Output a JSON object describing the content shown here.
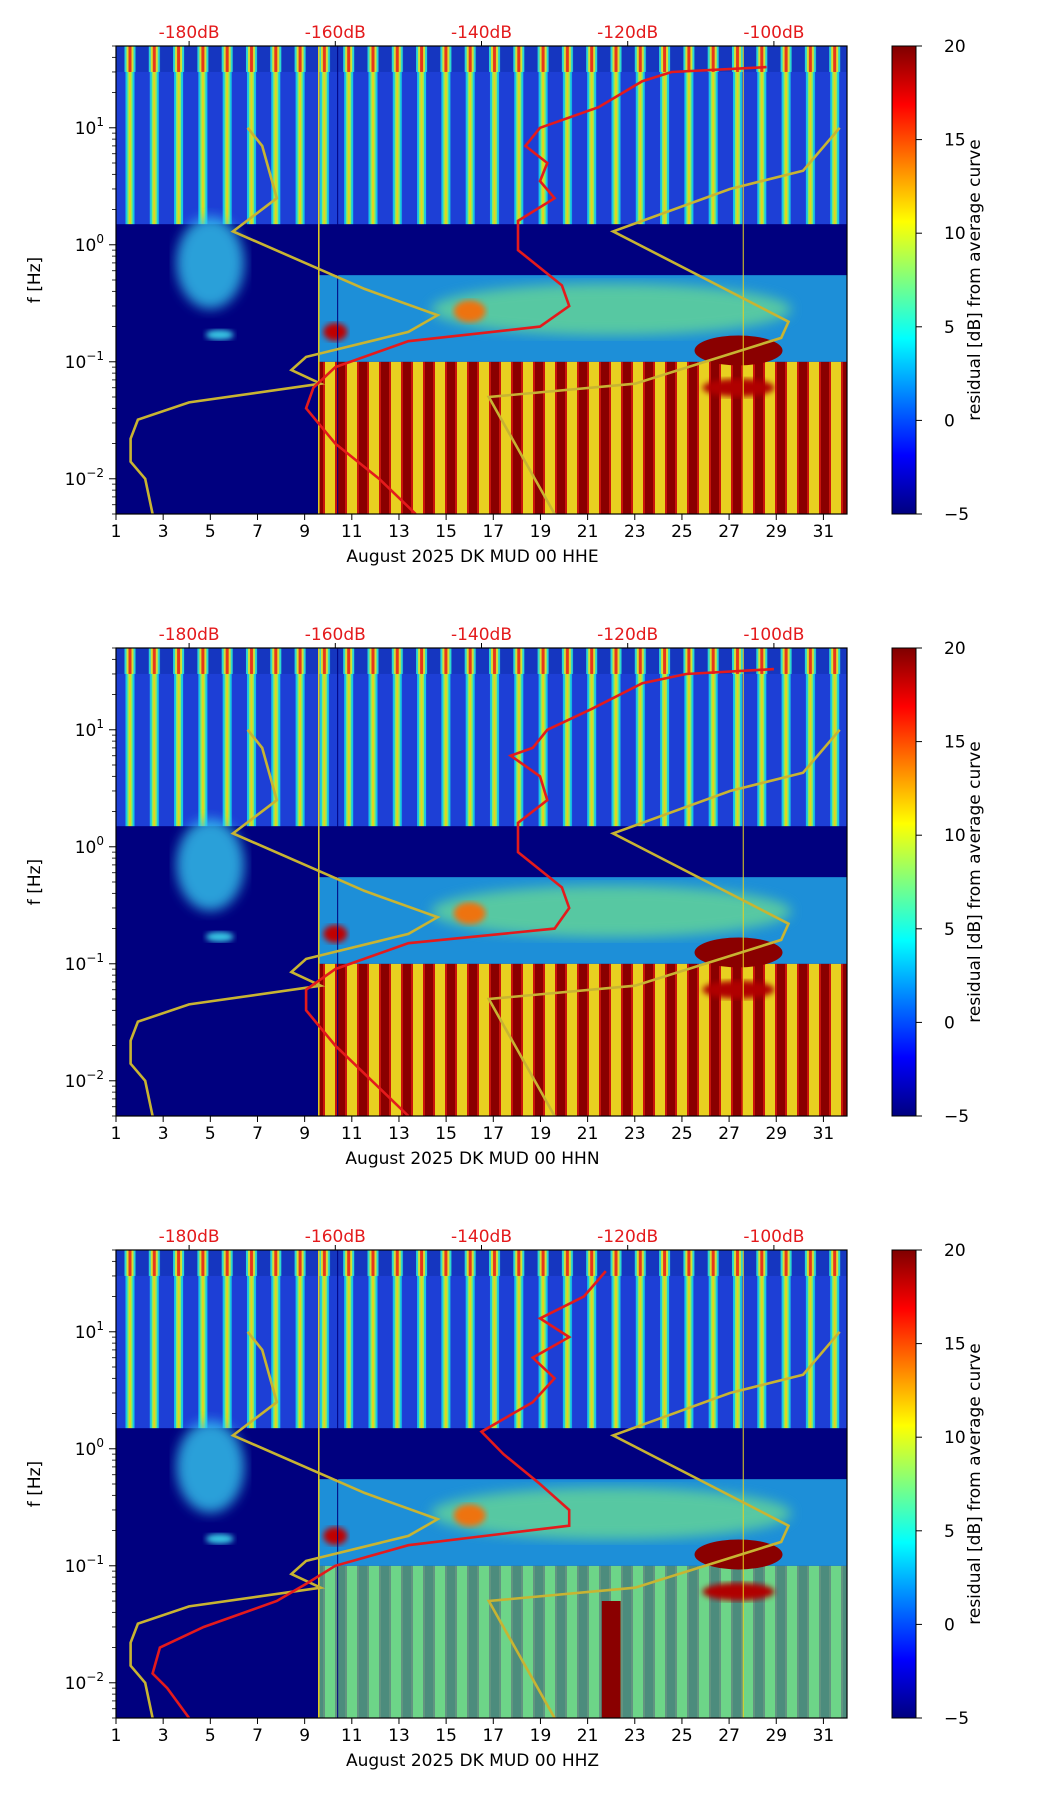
{
  "chart_data": {
    "type": "heatmap",
    "x_ticks": [
      "1",
      "3",
      "5",
      "7",
      "9",
      "11",
      "13",
      "15",
      "17",
      "19",
      "21",
      "23",
      "25",
      "27",
      "29",
      "31"
    ],
    "x_tick_values": [
      1,
      3,
      5,
      7,
      9,
      11,
      13,
      15,
      17,
      19,
      21,
      23,
      25,
      27,
      29,
      31
    ],
    "xlim": [
      1,
      32
    ],
    "y_ticks": [
      {
        "label": "10",
        "exp": "1",
        "value": 10
      },
      {
        "label": "10",
        "exp": "0",
        "value": 1
      },
      {
        "label": "10",
        "exp": "−1",
        "value": 0.1
      },
      {
        "label": "10",
        "exp": "−2",
        "value": 0.01
      }
    ],
    "ylim": [
      0.005,
      50
    ],
    "ylabel": "f [Hz]",
    "top_ticks": [
      "-180dB",
      "-160dB",
      "-140dB",
      "-120dB",
      "-100dB"
    ],
    "top_tick_values": [
      -180,
      -160,
      -140,
      -120,
      -100
    ],
    "top_range": [
      -190,
      -90
    ],
    "colorbar": {
      "label": "residual [dB] from average curve",
      "ticks": [
        "20",
        "15",
        "10",
        "5",
        "0",
        "−5"
      ],
      "tick_values": [
        20,
        15,
        10,
        5,
        0,
        -5
      ],
      "range": [
        -5,
        20
      ],
      "colormap": "jet"
    },
    "model_curve_color": "#c8b432",
    "average_curve_color": "#e41a1c",
    "noise_model_curve": [
      {
        "db": -172,
        "f": 10
      },
      {
        "db": -170,
        "f": 7
      },
      {
        "db": -168,
        "f": 2.5
      },
      {
        "db": -174,
        "f": 1.3
      },
      {
        "db": -156,
        "f": 0.42
      },
      {
        "db": -146,
        "f": 0.25
      },
      {
        "db": -150,
        "f": 0.18
      },
      {
        "db": -164,
        "f": 0.11
      },
      {
        "db": -166,
        "f": 0.085
      },
      {
        "db": -162,
        "f": 0.065
      },
      {
        "db": -180,
        "f": 0.045
      },
      {
        "db": -187,
        "f": 0.032
      },
      {
        "db": -188,
        "f": 0.022
      },
      {
        "db": -188,
        "f": 0.014
      },
      {
        "db": -186,
        "f": 0.01
      },
      {
        "db": -185,
        "f": 0.005
      }
    ],
    "high_model_curve": [
      {
        "db": -91,
        "f": 10
      },
      {
        "db": -96,
        "f": 4.3
      },
      {
        "db": -106,
        "f": 3
      },
      {
        "db": -122,
        "f": 1.3
      },
      {
        "db": -98,
        "f": 0.22
      },
      {
        "db": -99,
        "f": 0.16
      },
      {
        "db": -119,
        "f": 0.065
      },
      {
        "db": -139,
        "f": 0.05
      },
      {
        "db": -130,
        "f": 0.005
      }
    ],
    "panels": [
      {
        "xlabel": "August 2025 DK MUD 00 HHE",
        "average_curve": [
          {
            "db": -101,
            "f": 33
          },
          {
            "db": -114,
            "f": 30
          },
          {
            "db": -118,
            "f": 25
          },
          {
            "db": -124,
            "f": 15
          },
          {
            "db": -132,
            "f": 10
          },
          {
            "db": -134,
            "f": 7
          },
          {
            "db": -131,
            "f": 5
          },
          {
            "db": -132,
            "f": 3.5
          },
          {
            "db": -130,
            "f": 2.5
          },
          {
            "db": -135,
            "f": 1.6
          },
          {
            "db": -135,
            "f": 0.9
          },
          {
            "db": -129,
            "f": 0.45
          },
          {
            "db": -128,
            "f": 0.3
          },
          {
            "db": -132,
            "f": 0.2
          },
          {
            "db": -150,
            "f": 0.15
          },
          {
            "db": -160,
            "f": 0.09
          },
          {
            "db": -163,
            "f": 0.06
          },
          {
            "db": -164,
            "f": 0.04
          },
          {
            "db": -160,
            "f": 0.02
          },
          {
            "db": -154,
            "f": 0.01
          },
          {
            "db": -149,
            "f": 0.005
          }
        ]
      },
      {
        "xlabel": "August 2025 DK MUD 00 HHN",
        "average_curve": [
          {
            "db": -100,
            "f": 33
          },
          {
            "db": -112,
            "f": 30
          },
          {
            "db": -118,
            "f": 25
          },
          {
            "db": -125,
            "f": 15
          },
          {
            "db": -131,
            "f": 10
          },
          {
            "db": -133,
            "f": 7
          },
          {
            "db": -136,
            "f": 6
          },
          {
            "db": -132,
            "f": 4
          },
          {
            "db": -131,
            "f": 2.5
          },
          {
            "db": -135,
            "f": 1.6
          },
          {
            "db": -135,
            "f": 0.9
          },
          {
            "db": -129,
            "f": 0.45
          },
          {
            "db": -128,
            "f": 0.3
          },
          {
            "db": -130,
            "f": 0.2
          },
          {
            "db": -150,
            "f": 0.15
          },
          {
            "db": -160,
            "f": 0.09
          },
          {
            "db": -164,
            "f": 0.06
          },
          {
            "db": -164,
            "f": 0.04
          },
          {
            "db": -160,
            "f": 0.02
          },
          {
            "db": -155,
            "f": 0.01
          },
          {
            "db": -150,
            "f": 0.005
          }
        ]
      },
      {
        "xlabel": "August 2025 DK MUD 00 HHZ",
        "average_curve": [
          {
            "db": -123,
            "f": 33
          },
          {
            "db": -126,
            "f": 20
          },
          {
            "db": -132,
            "f": 13
          },
          {
            "db": -128,
            "f": 9
          },
          {
            "db": -133,
            "f": 6
          },
          {
            "db": -130,
            "f": 4
          },
          {
            "db": -133,
            "f": 2.5
          },
          {
            "db": -140,
            "f": 1.4
          },
          {
            "db": -137,
            "f": 0.9
          },
          {
            "db": -132,
            "f": 0.5
          },
          {
            "db": -128,
            "f": 0.3
          },
          {
            "db": -128,
            "f": 0.22
          },
          {
            "db": -150,
            "f": 0.15
          },
          {
            "db": -160,
            "f": 0.1
          },
          {
            "db": -164,
            "f": 0.07
          },
          {
            "db": -168,
            "f": 0.05
          },
          {
            "db": -178,
            "f": 0.03
          },
          {
            "db": -184,
            "f": 0.02
          },
          {
            "db": -185,
            "f": 0.012
          },
          {
            "db": -183,
            "f": 0.009
          },
          {
            "db": -180,
            "f": 0.005
          }
        ]
      }
    ]
  }
}
